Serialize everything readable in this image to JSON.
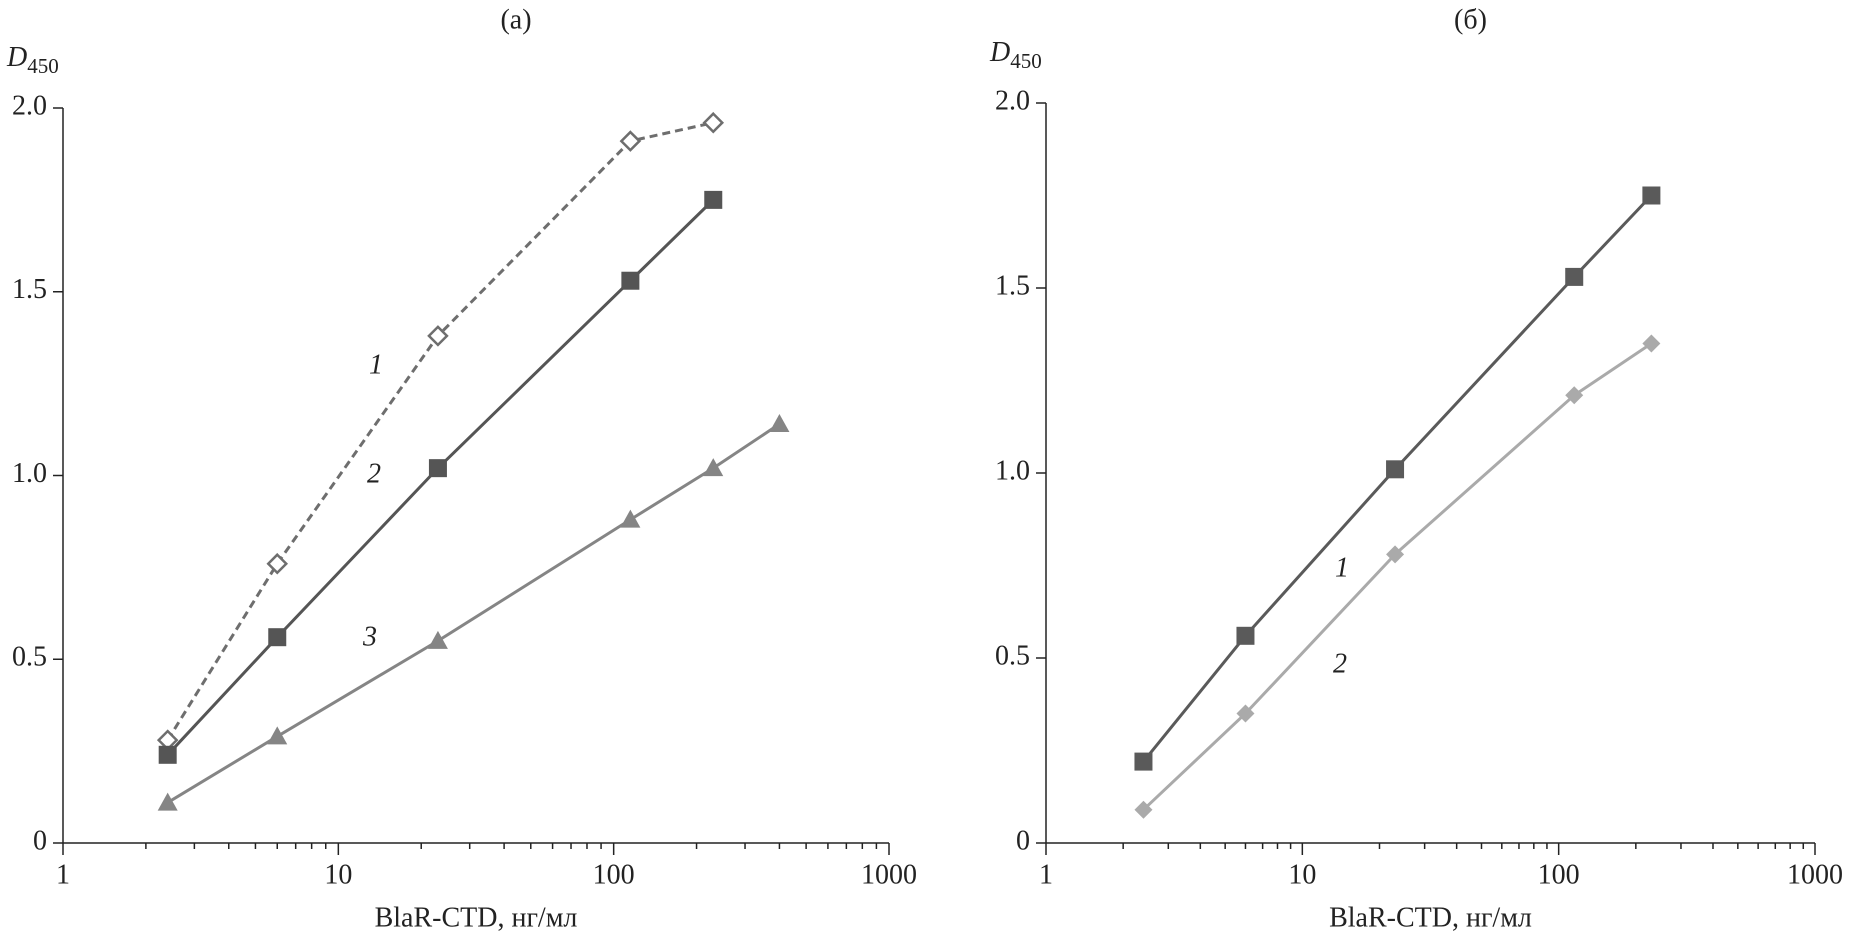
{
  "chart_data": [
    {
      "type": "line",
      "title": "(a)",
      "ylabel": "D",
      "ylabel_sub": "450",
      "xlabel": "BlaR-CTD, нг/мл",
      "xscale": "log",
      "xlim": [
        1,
        1000
      ],
      "xticks": [
        1,
        10,
        100,
        1000
      ],
      "ylim": [
        0,
        2.0
      ],
      "yticks": [
        0,
        0.5,
        {
          "value": 1.0,
          "label": "1.0"
        },
        1.5,
        {
          "value": 2.0,
          "label": "2.0"
        }
      ],
      "series": [
        {
          "name": "1",
          "color": "#6e6e6e",
          "dashed": true,
          "marker": "diamond-open",
          "x": [
            2.4,
            6,
            23,
            115,
            230
          ],
          "values": [
            0.28,
            0.76,
            1.38,
            1.91,
            1.96
          ]
        },
        {
          "name": "2",
          "color": "#555555",
          "dashed": false,
          "marker": "square",
          "x": [
            2.4,
            6,
            23,
            115,
            230
          ],
          "values": [
            0.24,
            0.56,
            1.02,
            1.53,
            1.75
          ]
        },
        {
          "name": "3",
          "color": "#858585",
          "dashed": false,
          "marker": "triangle",
          "x": [
            2.4,
            6,
            23,
            115,
            230,
            400
          ],
          "values": [
            0.11,
            0.29,
            0.55,
            0.88,
            1.02,
            1.14
          ]
        }
      ]
    },
    {
      "type": "line",
      "title": "(б)",
      "ylabel": "D",
      "ylabel_sub": "450",
      "xlabel": "BlaR-CTD, нг/мл",
      "xscale": "log",
      "xlim": [
        1,
        1000
      ],
      "xticks": [
        1,
        10,
        100,
        1000
      ],
      "ylim": [
        0,
        2.0
      ],
      "yticks": [
        0,
        0.5,
        {
          "value": 1.0,
          "label": "1.0"
        },
        1.5,
        {
          "value": 2.0,
          "label": "2.0"
        }
      ],
      "series": [
        {
          "name": "1",
          "color": "#5a5a5a",
          "dashed": false,
          "marker": "square",
          "x": [
            2.4,
            6,
            23,
            115,
            230
          ],
          "values": [
            0.22,
            0.56,
            1.01,
            1.53,
            1.75
          ]
        },
        {
          "name": "2",
          "color": "#aaaaaa",
          "dashed": false,
          "marker": "diamond",
          "x": [
            2.4,
            6,
            23,
            115,
            230
          ],
          "values": [
            0.09,
            0.35,
            0.78,
            1.21,
            1.35
          ]
        }
      ]
    }
  ]
}
